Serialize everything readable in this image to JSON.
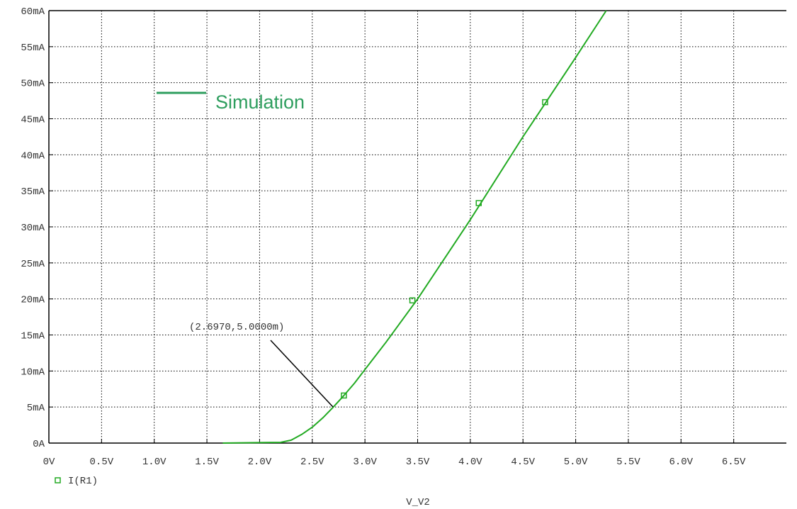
{
  "chart_data": {
    "type": "line",
    "xlabel": "V_V2",
    "x_ticks": [
      "0V",
      "0.5V",
      "1.0V",
      "1.5V",
      "2.0V",
      "2.5V",
      "3.0V",
      "3.5V",
      "4.0V",
      "4.5V",
      "5.0V",
      "5.5V",
      "6.0V",
      "6.5V"
    ],
    "y_ticks": [
      "0A",
      "5mA",
      "10mA",
      "15mA",
      "20mA",
      "25mA",
      "30mA",
      "35mA",
      "40mA",
      "45mA",
      "50mA",
      "55mA",
      "60mA"
    ],
    "xlim": [
      0,
      7
    ],
    "ylim": [
      0,
      60
    ],
    "grid": true,
    "series": [
      {
        "name": "I(R1)",
        "color": "#22aa22",
        "x": [
          1.65,
          2.2,
          2.3,
          2.4,
          2.5,
          2.6,
          2.7,
          2.8,
          2.9,
          3.0,
          3.2,
          3.5,
          4.0,
          4.5,
          5.0,
          5.29
        ],
        "y": [
          0,
          0.1,
          0.4,
          1.2,
          2.2,
          3.5,
          5.0,
          6.6,
          8.3,
          10.2,
          14.0,
          20.0,
          31.0,
          42.5,
          53.5,
          60
        ],
        "markers_x": [
          2.8,
          3.45,
          4.08,
          4.71
        ],
        "markers_y": [
          6.6,
          19.8,
          33.3,
          47.3
        ]
      }
    ],
    "legend": {
      "entry": "I(R1)",
      "placement": "bottom-left"
    },
    "annotation": {
      "text": "(2.6970,5.0000m)",
      "point_x": 2.697,
      "point_y": 5.0
    },
    "overlay_label": {
      "text": "Simulation",
      "color": "#2e9e5e"
    }
  }
}
